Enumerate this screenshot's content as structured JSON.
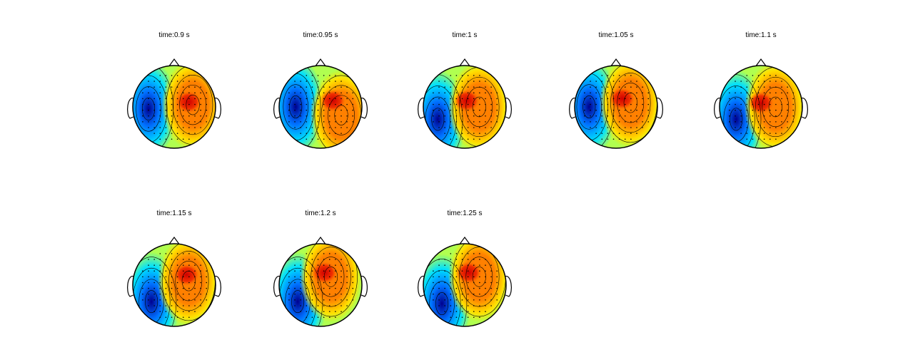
{
  "panels": [
    {
      "title": "time:0.9 s",
      "warm_center": [
        0.45,
        0.05
      ],
      "cold_center": [
        -0.62,
        -0.05
      ],
      "warm_spot": [
        0.35,
        0.12
      ]
    },
    {
      "title": "time:0.95 s",
      "warm_center": [
        0.5,
        -0.2
      ],
      "cold_center": [
        -0.6,
        0.0
      ],
      "warm_spot": [
        0.3,
        0.15
      ]
    },
    {
      "title": "time:1 s",
      "warm_center": [
        0.35,
        0.0
      ],
      "cold_center": [
        -0.65,
        -0.3
      ],
      "warm_spot": [
        0.05,
        0.15
      ]
    },
    {
      "title": "time:1.05 s",
      "warm_center": [
        0.35,
        0.1
      ],
      "cold_center": [
        -0.65,
        0.0
      ],
      "warm_spot": [
        0.15,
        0.2
      ]
    },
    {
      "title": "time:1.1 s",
      "warm_center": [
        0.35,
        0.0
      ],
      "cold_center": [
        -0.6,
        -0.3
      ],
      "warm_spot": [
        0.0,
        0.1
      ]
    },
    {
      "title": "time:1.15 s",
      "warm_center": [
        0.35,
        0.1
      ],
      "cold_center": [
        -0.55,
        -0.4
      ],
      "warm_spot": [
        0.3,
        0.25
      ]
    },
    {
      "title": "time:1.2 s",
      "warm_center": [
        0.25,
        0.2
      ],
      "cold_center": [
        -0.55,
        -0.4
      ],
      "warm_spot": [
        0.1,
        0.3
      ]
    },
    {
      "title": "time:1.25 s",
      "warm_center": [
        0.35,
        0.2
      ],
      "cold_center": [
        -0.55,
        -0.45
      ],
      "warm_spot": [
        0.1,
        0.3
      ]
    }
  ],
  "colors": {
    "deep_blue": "#00008f",
    "blue": "#0070ff",
    "cyan": "#00e0ff",
    "green_yellow": "#b0ff50",
    "yellow": "#ffe000",
    "orange": "#ff8000",
    "red": "#d00000",
    "outline": "#000000"
  }
}
